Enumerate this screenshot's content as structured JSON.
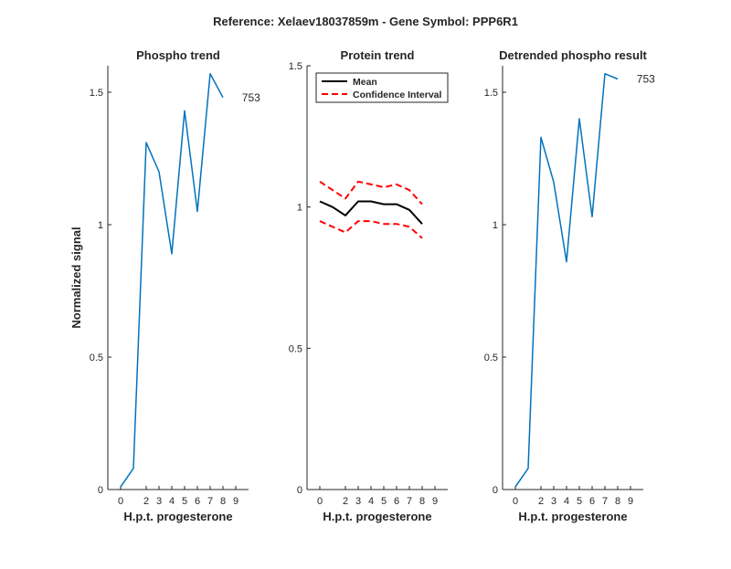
{
  "figure": {
    "title": "Reference:  Xelaev18037859m - Gene Symbol:  PPP6R1",
    "series_color": "#0072BD",
    "mean_color": "#000000",
    "ci_color": "#FF0000"
  },
  "chart_data": [
    {
      "type": "line",
      "title": "Phospho trend",
      "xlabel": "H.p.t. progesterone",
      "ylabel": "Normalized signal",
      "xlim": [
        -1,
        10
      ],
      "ylim": [
        0,
        1.6
      ],
      "xticks": [
        0,
        2,
        3,
        4,
        5,
        6,
        7,
        8,
        9
      ],
      "yticks": [
        0,
        0.5,
        1,
        1.5
      ],
      "ytick_labels": [
        "0",
        "0.5",
        "1",
        "1.5"
      ],
      "grid": false,
      "series": [
        {
          "x": [
            0,
            1,
            2,
            3,
            4,
            5,
            6,
            7,
            8,
            9
          ],
          "values": [
            0.01,
            0.08,
            1.31,
            1.2,
            0.89,
            1.43,
            1.05,
            1.57,
            1.48,
            null
          ]
        }
      ],
      "annotation": {
        "text": "753",
        "x": 9.2,
        "y": 1.48
      }
    },
    {
      "type": "line",
      "title": "Protein trend",
      "xlabel": "H.p.t. progesterone",
      "ylabel": "",
      "xlim": [
        -1,
        10
      ],
      "ylim": [
        0,
        1.5
      ],
      "xticks": [
        0,
        2,
        3,
        4,
        5,
        6,
        7,
        8,
        9
      ],
      "yticks": [
        0,
        0.5,
        1,
        1.5
      ],
      "ytick_labels": [
        "0",
        "0.5",
        "1",
        "1.5"
      ],
      "grid": false,
      "legend": {
        "placement": "top-left",
        "entries": [
          "Mean",
          "Confidence Interval"
        ]
      },
      "series": [
        {
          "name": "Mean",
          "x": [
            0,
            1,
            2,
            3,
            4,
            5,
            6,
            7,
            8,
            9
          ],
          "values": [
            1.02,
            1.0,
            0.97,
            1.02,
            1.02,
            1.01,
            1.01,
            0.99,
            0.94,
            null
          ]
        },
        {
          "name": "Confidence Interval",
          "x": [
            0,
            1,
            2,
            3,
            4,
            5,
            6,
            7,
            8,
            9
          ],
          "values": [
            1.09,
            1.06,
            1.03,
            1.09,
            1.08,
            1.07,
            1.08,
            1.06,
            1.01,
            null
          ]
        },
        {
          "name": "Confidence Interval",
          "x": [
            0,
            1,
            2,
            3,
            4,
            5,
            6,
            7,
            8,
            9
          ],
          "values": [
            0.95,
            0.93,
            0.91,
            0.95,
            0.95,
            0.94,
            0.94,
            0.93,
            0.89,
            null
          ]
        }
      ]
    },
    {
      "type": "line",
      "title": "Detrended phospho result",
      "xlabel": "H.p.t. progesterone",
      "ylabel": "",
      "xlim": [
        -1,
        10
      ],
      "ylim": [
        0,
        1.6
      ],
      "xticks": [
        0,
        2,
        3,
        4,
        5,
        6,
        7,
        8,
        9
      ],
      "yticks": [
        0,
        0.5,
        1,
        1.5
      ],
      "ytick_labels": [
        "0",
        "0.5",
        "1",
        "1.5"
      ],
      "grid": false,
      "series": [
        {
          "x": [
            0,
            1,
            2,
            3,
            4,
            5,
            6,
            7,
            8,
            9
          ],
          "values": [
            0.01,
            0.08,
            1.33,
            1.16,
            0.86,
            1.4,
            1.03,
            1.57,
            1.55,
            null
          ]
        }
      ],
      "annotation": {
        "text": "753",
        "x": 9.2,
        "y": 1.55
      }
    }
  ]
}
